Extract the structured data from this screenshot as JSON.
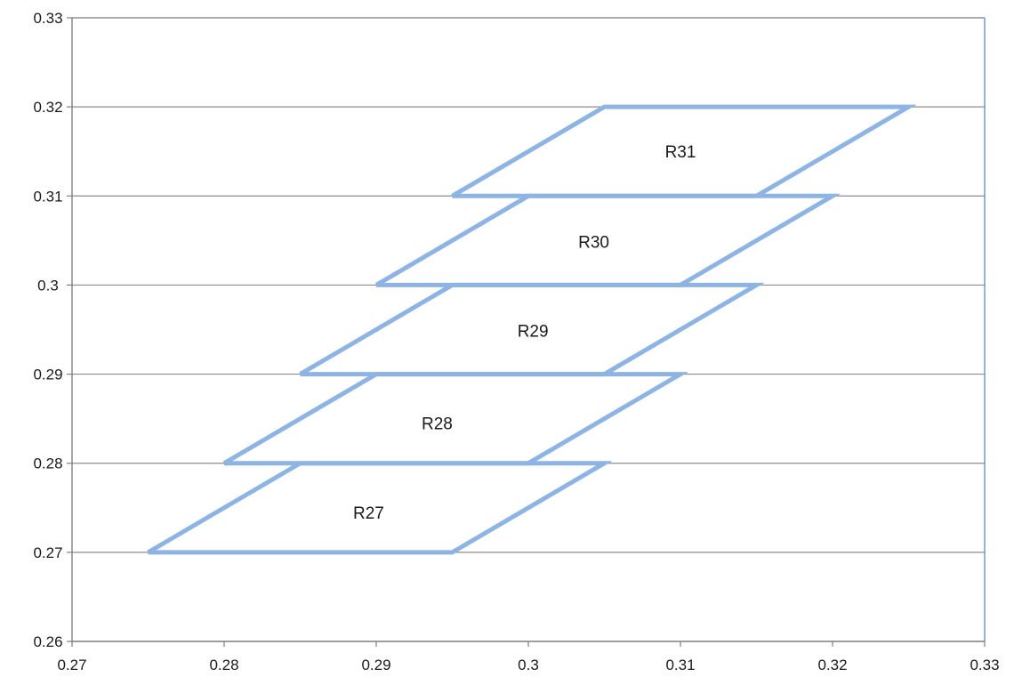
{
  "chart_data": {
    "type": "scatter",
    "title": "",
    "xlabel": "",
    "ylabel": "",
    "xlim": [
      0.27,
      0.33
    ],
    "ylim": [
      0.26,
      0.33
    ],
    "x_ticks": [
      "0.27",
      "0.28",
      "0.29",
      "0.3",
      "0.31",
      "0.32",
      "0.33"
    ],
    "y_ticks": [
      "0.26",
      "0.27",
      "0.28",
      "0.29",
      "0.3",
      "0.31",
      "0.32",
      "0.33"
    ],
    "grid": "horizontal",
    "series_color": "#8eb4e3",
    "series": [
      {
        "label": "R27",
        "x": [
          0.275,
          0.295,
          0.305,
          0.285,
          0.275
        ],
        "y": [
          0.27,
          0.27,
          0.28,
          0.28,
          0.27
        ],
        "label_pos": [
          0.2895,
          0.2745
        ]
      },
      {
        "label": "R28",
        "x": [
          0.28,
          0.3,
          0.31,
          0.29,
          0.28
        ],
        "y": [
          0.28,
          0.28,
          0.29,
          0.29,
          0.28
        ],
        "label_pos": [
          0.294,
          0.2845
        ]
      },
      {
        "label": "R29",
        "x": [
          0.285,
          0.305,
          0.315,
          0.295,
          0.285
        ],
        "y": [
          0.29,
          0.29,
          0.3,
          0.3,
          0.29
        ],
        "label_pos": [
          0.3003,
          0.2949
        ]
      },
      {
        "label": "R30",
        "x": [
          0.29,
          0.31,
          0.32,
          0.3,
          0.29
        ],
        "y": [
          0.3,
          0.3,
          0.31,
          0.31,
          0.3
        ],
        "label_pos": [
          0.3043,
          0.3049
        ]
      },
      {
        "label": "R31",
        "x": [
          0.295,
          0.315,
          0.325,
          0.305,
          0.295
        ],
        "y": [
          0.31,
          0.31,
          0.32,
          0.32,
          0.31
        ],
        "label_pos": [
          0.31,
          0.315
        ]
      }
    ]
  }
}
